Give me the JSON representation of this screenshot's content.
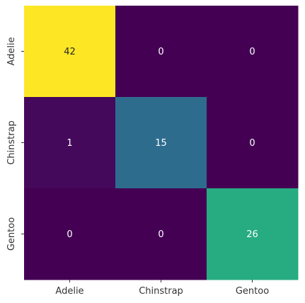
{
  "chart_data": {
    "type": "heatmap",
    "title": "",
    "xlabel": "",
    "ylabel": "",
    "x_categories": [
      "Adelie",
      "Chinstrap",
      "Gentoo"
    ],
    "y_categories": [
      "Adelie",
      "Chinstrap",
      "Gentoo"
    ],
    "values": [
      [
        42,
        0,
        0
      ],
      [
        1,
        15,
        0
      ],
      [
        0,
        0,
        26
      ]
    ],
    "colormap": "viridis",
    "value_range": [
      0,
      42
    ],
    "colorbar": false,
    "annotations": true,
    "grid": false
  }
}
